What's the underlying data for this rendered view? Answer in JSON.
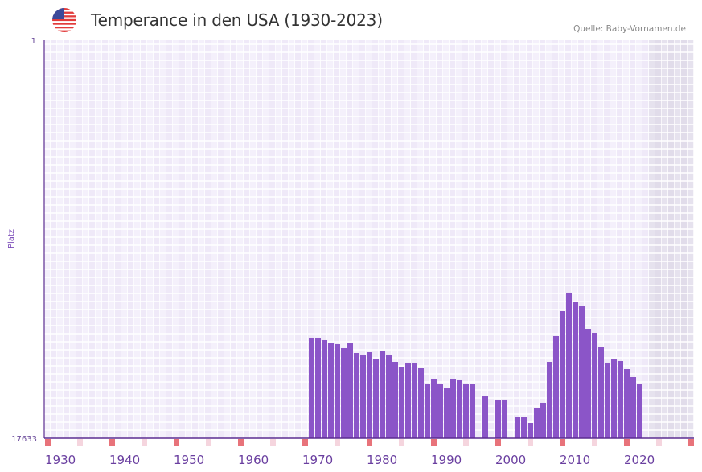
{
  "header": {
    "title": "Temperance in den USA (1930-2023)",
    "source": "Quelle: Baby-Vornamen.de",
    "flag_icon": "us-flag-icon"
  },
  "colors": {
    "bar": "#8b55c8",
    "axis": "#5c2d91",
    "decade_marker": "#e8737a",
    "half_decade_marker": "#f5d5de",
    "future_shade": "#e3dfec"
  },
  "chart_data": {
    "type": "bar",
    "title": "Temperance in den USA (1930-2023)",
    "ylabel": "Platz",
    "xlabel": "",
    "ylim": [
      1,
      17633
    ],
    "y_inverted": true,
    "xlim": [
      1930,
      2030
    ],
    "x_ticks": [
      "1930",
      "1940",
      "1950",
      "1960",
      "1970",
      "1980",
      "1990",
      "2000",
      "2010",
      "2020"
    ],
    "y_ticks": [
      "1",
      "17633"
    ],
    "future_shaded_from": 2024,
    "points": [
      [
        1971,
        13180
      ],
      [
        1972,
        13180
      ],
      [
        1973,
        13287
      ],
      [
        1974,
        13394
      ],
      [
        1975,
        13465
      ],
      [
        1976,
        13643
      ],
      [
        1977,
        13430
      ],
      [
        1978,
        13857
      ],
      [
        1979,
        13928
      ],
      [
        1980,
        13821
      ],
      [
        1981,
        14142
      ],
      [
        1982,
        13750
      ],
      [
        1983,
        13964
      ],
      [
        1984,
        14249
      ],
      [
        1985,
        14498
      ],
      [
        1986,
        14284
      ],
      [
        1987,
        14320
      ],
      [
        1988,
        14534
      ],
      [
        1989,
        15211
      ],
      [
        1990,
        14997
      ],
      [
        1991,
        15246
      ],
      [
        1992,
        15389
      ],
      [
        1993,
        14997
      ],
      [
        1994,
        15032
      ],
      [
        1995,
        15246
      ],
      [
        1996,
        15246
      ],
      [
        1998,
        15780
      ],
      [
        2000,
        15959
      ],
      [
        2001,
        15923
      ],
      [
        2003,
        16672
      ],
      [
        2004,
        16672
      ],
      [
        2005,
        16956
      ],
      [
        2006,
        16280
      ],
      [
        2007,
        16065
      ],
      [
        2008,
        14249
      ],
      [
        2009,
        13109
      ],
      [
        2010,
        12005
      ],
      [
        2011,
        11185
      ],
      [
        2012,
        11613
      ],
      [
        2013,
        11756
      ],
      [
        2014,
        12789
      ],
      [
        2015,
        12967
      ],
      [
        2016,
        13608
      ],
      [
        2017,
        14284
      ],
      [
        2018,
        14142
      ],
      [
        2019,
        14213
      ],
      [
        2020,
        14570
      ],
      [
        2021,
        14926
      ],
      [
        2022,
        15211
      ]
    ]
  }
}
